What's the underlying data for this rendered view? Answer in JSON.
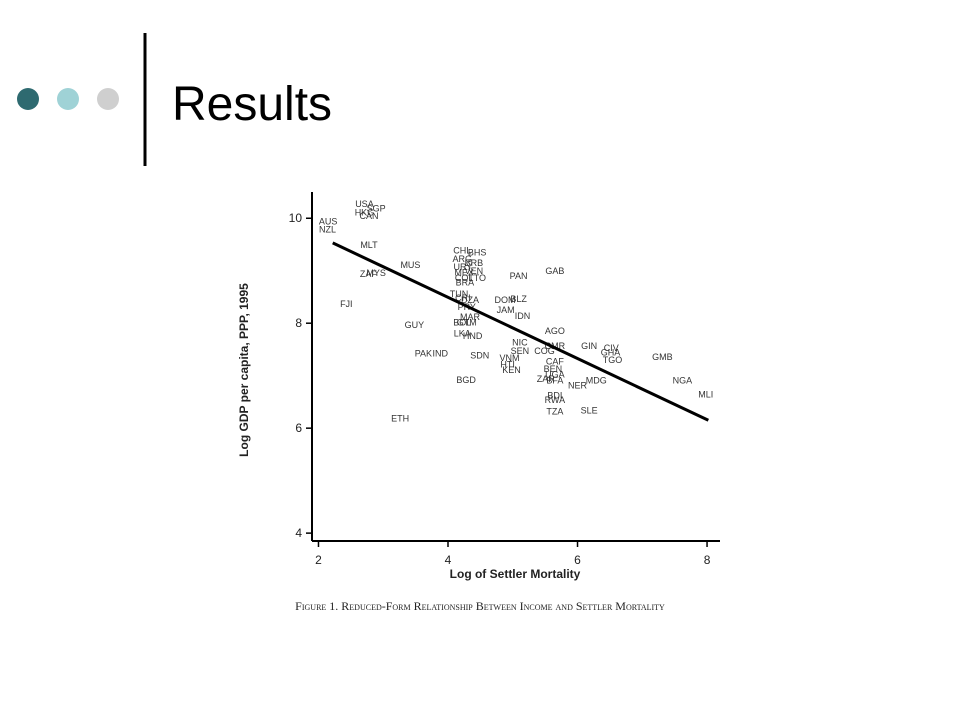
{
  "slide": {
    "title": "Results"
  },
  "chart_data": {
    "type": "scatter",
    "caption": "Figure 1. Reduced-Form Relationship Between Income and Settler Mortality",
    "x_label": "Log of Settler Mortality",
    "y_label": "Log GDP per capita, PPP, 1995",
    "xlim": [
      1.9,
      8.2
    ],
    "ylim": [
      3.85,
      10.5
    ],
    "xticks": [
      2,
      4,
      6,
      8
    ],
    "yticks": [
      4,
      6,
      8,
      10
    ],
    "color": "#333333",
    "labels": [
      "AUS",
      "NZL",
      "USA",
      "HKG",
      "SGP",
      "CAN",
      "MLT",
      "MUS",
      "ZAF",
      "MYS",
      "FJI",
      "GUY",
      "PAK",
      "IND",
      "BGD",
      "ETH",
      "CHL",
      "BHS",
      "ARG",
      "BRB",
      "URY",
      "MEX",
      "COL",
      "VEN",
      "TTO",
      "BRA",
      "PAN",
      "GAB",
      "TUN",
      "CRI",
      "DZA",
      "PRY",
      "DOM",
      "BLZ",
      "JAM",
      "IDN",
      "MAR",
      "BOL",
      "GTM",
      "LKA",
      "HND",
      "AGO",
      "NIC",
      "SEN",
      "CMR",
      "COG",
      "GIN",
      "CIV",
      "GHA",
      "TGO",
      "GMB",
      "SDN",
      "VNM",
      "HTI",
      "KEN",
      "CAF",
      "BEN",
      "ZAR",
      "UGA",
      "BFA",
      "NER",
      "MDG",
      "NGA",
      "MLI",
      "BDI",
      "RWA",
      "TZA",
      "SLE"
    ],
    "x": [
      2.15,
      2.14,
      2.71,
      2.71,
      2.89,
      2.78,
      2.78,
      3.42,
      2.77,
      2.89,
      2.43,
      3.48,
      3.62,
      3.88,
      4.28,
      3.26,
      4.22,
      4.45,
      4.22,
      4.4,
      4.23,
      4.25,
      4.25,
      4.4,
      4.45,
      4.26,
      5.09,
      5.65,
      4.17,
      4.23,
      4.34,
      4.29,
      4.88,
      5.09,
      4.89,
      5.15,
      4.34,
      4.22,
      4.29,
      4.22,
      4.38,
      5.65,
      5.11,
      5.11,
      5.65,
      5.49,
      6.18,
      6.52,
      6.51,
      6.54,
      7.31,
      4.49,
      4.95,
      4.92,
      4.98,
      5.65,
      5.62,
      5.51,
      5.65,
      5.65,
      6.0,
      6.29,
      7.62,
      7.98,
      5.65,
      5.65,
      5.65,
      6.18
    ],
    "y": [
      9.94,
      9.79,
      10.27,
      10.11,
      10.19,
      10.04,
      9.49,
      9.11,
      8.94,
      8.96,
      8.37,
      7.97,
      7.42,
      7.42,
      6.92,
      6.18,
      9.39,
      9.35,
      9.22,
      9.15,
      9.07,
      8.97,
      8.86,
      8.99,
      8.86,
      8.78,
      8.9,
      8.99,
      8.56,
      8.48,
      8.44,
      8.31,
      8.44,
      8.46,
      8.25,
      8.14,
      8.12,
      8.01,
      8.01,
      7.8,
      7.76,
      7.85,
      7.63,
      7.47,
      7.57,
      7.47,
      7.57,
      7.53,
      7.44,
      7.3,
      7.36,
      7.38,
      7.34,
      7.21,
      7.11,
      7.27,
      7.13,
      6.94,
      7.02,
      6.91,
      6.81,
      6.91,
      6.91,
      6.64,
      6.62,
      6.54,
      6.32,
      6.34
    ],
    "trend_line": {
      "x": [
        2.22,
        8.02
      ],
      "y": [
        9.53,
        6.15
      ]
    }
  }
}
